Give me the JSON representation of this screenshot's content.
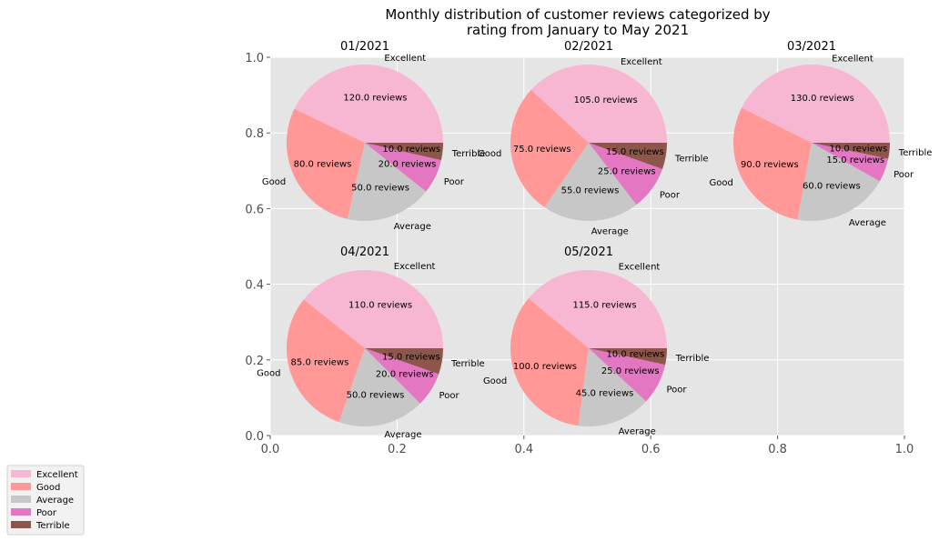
{
  "chart_data": {
    "type": "pie",
    "title": "Monthly distribution of customer reviews categorized by",
    "title_line2": "rating from January to May 2021",
    "categories": [
      "Excellent",
      "Good",
      "Average",
      "Poor",
      "Terrible"
    ],
    "colors": [
      "#f7b6d2",
      "#ff9896",
      "#c7c7c7",
      "#e377c2",
      "#8c564b"
    ],
    "value_suffix": " reviews",
    "axes": {
      "xlim": [
        0,
        1
      ],
      "ylim": [
        0,
        1
      ],
      "xticks": [
        "0.0",
        "0.2",
        "0.4",
        "0.6",
        "0.8",
        "1.0"
      ],
      "yticks": [
        "0.0",
        "0.2",
        "0.4",
        "0.6",
        "0.8",
        "1.0"
      ],
      "grid": true,
      "background": "#e5e5e5"
    },
    "legend_position": "bottom-left",
    "pies": [
      {
        "label": "01/2021",
        "values": [
          120,
          80,
          50,
          20,
          10
        ],
        "value_labels": [
          "120.0 reviews",
          "80.0 reviews",
          "50.0 reviews",
          "20.0 reviews",
          "10.0 reviews"
        ]
      },
      {
        "label": "02/2021",
        "values": [
          105,
          75,
          55,
          25,
          15
        ],
        "value_labels": [
          "105.0 reviews",
          "75.0 reviews",
          "55.0 reviews",
          "25.0 reviews",
          "15.0 reviews"
        ]
      },
      {
        "label": "03/2021",
        "values": [
          130,
          90,
          60,
          15,
          10
        ],
        "value_labels": [
          "130.0 reviews",
          "90.0 reviews",
          "60.0 reviews",
          "15.0 reviews",
          "10.0 reviews"
        ]
      },
      {
        "label": "04/2021",
        "values": [
          110,
          85,
          50,
          20,
          15
        ],
        "value_labels": [
          "110.0 reviews",
          "85.0 reviews",
          "50.0 reviews",
          "20.0 reviews",
          "15.0 reviews"
        ]
      },
      {
        "label": "05/2021",
        "values": [
          115,
          100,
          45,
          25,
          10
        ],
        "value_labels": [
          "115.0 reviews",
          "100.0 reviews",
          "45.0 reviews",
          "25.0 reviews",
          "10.0 reviews"
        ]
      }
    ]
  }
}
